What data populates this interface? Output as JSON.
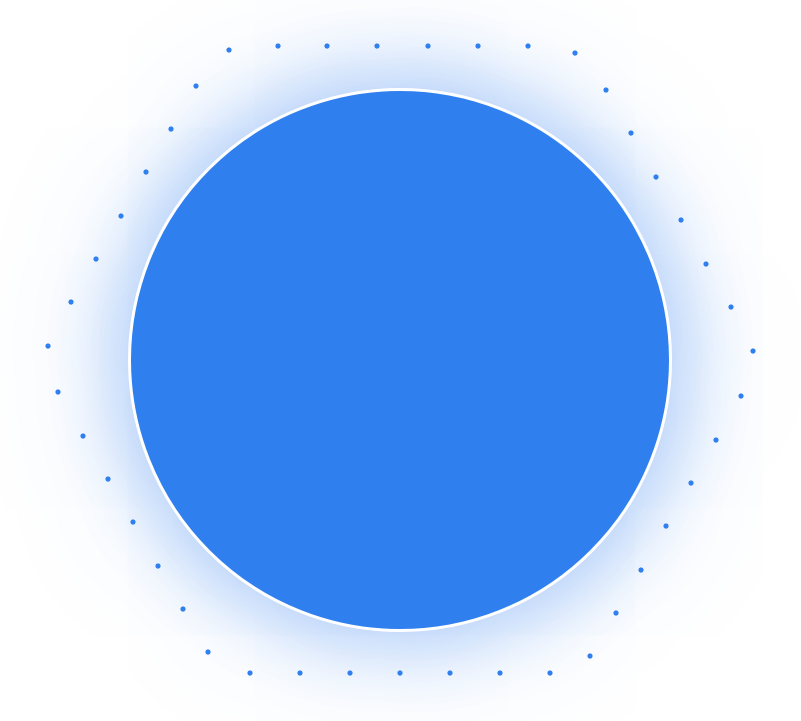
{
  "colors": {
    "circle_fill": "#2F7FEF",
    "circle_border": "#FFFFFF",
    "dot": "#2F7FEF",
    "background": "#FFFFFF"
  },
  "decoration": {
    "shape": "dotted-hexagon-ring",
    "center": "filled-circle"
  }
}
